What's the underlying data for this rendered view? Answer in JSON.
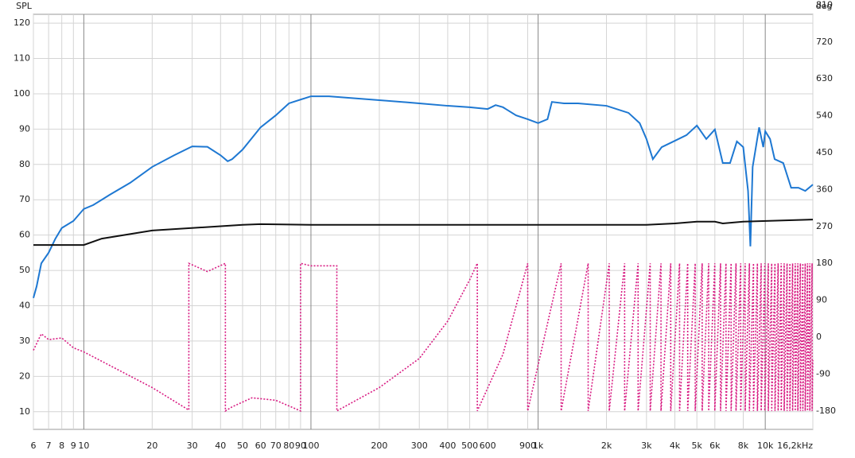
{
  "chart_data": {
    "type": "line",
    "y_label": "SPL",
    "y2_label": "deg",
    "x_scale": "log",
    "grid": true,
    "xlim": [
      6,
      16200
    ],
    "ylim": [
      5,
      122.5
    ],
    "y2lim": [
      -225,
      787.5
    ],
    "xticks": [
      6,
      7,
      8,
      9,
      10,
      20,
      30,
      40,
      50,
      60,
      70,
      80,
      90,
      100,
      200,
      300,
      400,
      500,
      600,
      900,
      {
        "value": 1000,
        "label": "1k"
      },
      {
        "value": 2000,
        "label": "2k"
      },
      {
        "value": 3000,
        "label": "3k"
      },
      {
        "value": 4000,
        "label": "4k"
      },
      {
        "value": 5000,
        "label": "5k"
      },
      {
        "value": 6000,
        "label": "6k"
      },
      {
        "value": 8000,
        "label": "8k"
      },
      {
        "value": 10000,
        "label": "10k"
      },
      {
        "value": 16200,
        "label": "16,2kHz"
      }
    ],
    "yticks": [
      10,
      20,
      30,
      40,
      50,
      60,
      70,
      80,
      90,
      100,
      110,
      120
    ],
    "y2ticks": [
      -180,
      -90,
      0,
      90,
      180,
      270,
      360,
      450,
      540,
      630,
      720,
      810
    ],
    "series": [
      {
        "color": "#1e78d2",
        "style": "solid",
        "x": [
          6,
          6.2,
          6.5,
          7,
          7.5,
          8,
          9,
          10,
          11,
          13,
          16,
          20,
          25,
          30,
          35,
          40,
          43,
          45,
          50,
          60,
          70,
          80,
          100,
          120,
          200,
          300,
          400,
          500,
          600,
          650,
          700,
          800,
          900,
          1000,
          1100,
          1150,
          1300,
          1500,
          2000,
          2500,
          2800,
          3000,
          3200,
          3500,
          4000,
          4500,
          5000,
          5500,
          6000,
          6500,
          7000,
          7500,
          8000,
          8400,
          8600,
          8800,
          9400,
          9800,
          10000,
          10500,
          11000,
          12000,
          13000,
          14000,
          15000,
          16200
        ],
        "values": [
          42.2,
          45.5,
          52,
          55,
          59,
          62,
          64,
          67.4,
          68.5,
          71.4,
          74.8,
          79.3,
          82.6,
          85.1,
          85,
          82.6,
          80.9,
          81.5,
          84.2,
          90.5,
          93.9,
          97.3,
          99.3,
          99.3,
          98.2,
          97.3,
          96.6,
          96.2,
          95.7,
          96.8,
          96.2,
          93.9,
          92.8,
          91.7,
          92.8,
          97.7,
          97.3,
          97.3,
          96.6,
          94.6,
          91.7,
          87.2,
          81.5,
          84.9,
          86.7,
          88.3,
          91,
          87.2,
          89.9,
          80.4,
          80.4,
          86.5,
          84.9,
          72.5,
          56.8,
          79.3,
          90.5,
          84.9,
          89.4,
          87.2,
          81.5,
          80.4,
          73.4,
          73.4,
          72.5,
          74.3
        ]
      },
      {
        "color": "#111111",
        "style": "solid",
        "x": [
          6,
          10,
          12,
          20,
          50,
          60,
          100,
          2000,
          3000,
          4000,
          5000,
          6000,
          6500,
          8000,
          16200
        ],
        "values": [
          57.2,
          57.2,
          59,
          61.3,
          62.9,
          63.1,
          62.9,
          62.9,
          62.9,
          63.3,
          63.8,
          63.8,
          63.3,
          63.8,
          64.4
        ]
      },
      {
        "color": "#d81b82",
        "style": "dotted",
        "axis": "y2",
        "x": [
          6,
          6.5,
          7,
          8,
          9,
          10,
          20,
          29,
          29,
          35,
          42,
          42,
          45,
          55,
          70,
          90,
          90,
          100,
          130,
          130,
          200,
          300,
          400,
          500,
          540,
          540,
          700,
          900,
          900,
          1263,
          1263,
          1661,
          1661,
          2057,
          2057,
          2404,
          2404,
          2756,
          2756,
          3116,
          3116,
          3476,
          3476,
          3836,
          3836,
          4196,
          4196,
          4556,
          4556,
          4916,
          4916,
          5276,
          5276,
          5636,
          5636,
          5996,
          5996,
          6356,
          6356,
          6716,
          6716,
          7076,
          7076,
          7436,
          7436,
          7796,
          7796,
          8156,
          8156,
          8516,
          8516,
          8876,
          8876,
          9236,
          9236,
          9596,
          9596,
          9956,
          9956,
          10316,
          10316,
          10676,
          10676,
          11036,
          11036,
          11396,
          11396,
          11756,
          11756,
          12116,
          12116,
          12476,
          12476,
          12836,
          12836,
          13196,
          13196,
          13556,
          13556,
          13916,
          13916,
          14276,
          14276,
          14636,
          14636,
          14996,
          14996,
          15356,
          15356,
          15716,
          15716,
          16076,
          16076,
          16200
        ],
        "values": [
          -32,
          8,
          -6,
          -2,
          -26,
          -36,
          -123,
          -178,
          180,
          160,
          180,
          -180,
          -170,
          -148,
          -154,
          -180,
          180,
          174,
          174,
          -180,
          -123,
          -52,
          39,
          140,
          180,
          -180,
          -42,
          180,
          -180,
          180,
          -180,
          180,
          -180,
          180,
          -180,
          180,
          -180,
          180,
          -180,
          180,
          -180,
          180,
          -180,
          180,
          -180,
          180,
          -180,
          180,
          -180,
          180,
          -180,
          180,
          -180,
          180,
          -180,
          180,
          -180,
          180,
          -180,
          180,
          -180,
          180,
          -180,
          180,
          -180,
          180,
          -180,
          180,
          -180,
          180,
          -180,
          180,
          -180,
          180,
          -180,
          180,
          -180,
          180,
          -180,
          180,
          -180,
          180,
          -180,
          180,
          -180,
          180,
          -180,
          180,
          -180,
          180,
          -180,
          180,
          -180,
          180,
          -180,
          180,
          -180,
          180,
          -180,
          180,
          -180,
          180,
          -180,
          180,
          -180,
          180,
          -180,
          180,
          -180,
          180,
          -180,
          180,
          -180,
          -56
        ]
      }
    ]
  }
}
